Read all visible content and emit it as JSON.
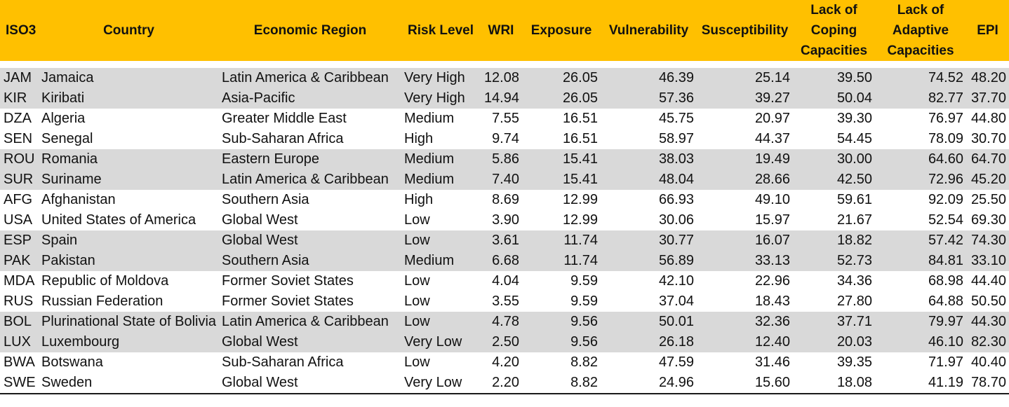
{
  "table": {
    "headers": {
      "iso3": "ISO3",
      "country": "Country",
      "region": "Economic Region",
      "risk": "Risk Level",
      "wri": "WRI",
      "exposure": "Exposure",
      "vulnerability": "Vulnerability",
      "susceptibility": "Susceptibility",
      "coping_1": "Lack of",
      "coping_2": "Coping",
      "coping_3": "Capacities",
      "adaptive_1": "Lack of",
      "adaptive_2": "Adaptive",
      "adaptive_3": "Capacities",
      "epi": "EPI"
    },
    "rows": [
      {
        "iso3": "JAM",
        "country": "Jamaica",
        "region": "Latin America & Caribbean",
        "risk": "Very High",
        "wri": "12.08",
        "exposure": "26.05",
        "vulnerability": "46.39",
        "susceptibility": "25.14",
        "coping": "39.50",
        "adaptive": "74.52",
        "epi": "48.20"
      },
      {
        "iso3": "KIR",
        "country": "Kiribati",
        "region": "Asia-Pacific",
        "risk": "Very High",
        "wri": "14.94",
        "exposure": "26.05",
        "vulnerability": "57.36",
        "susceptibility": "39.27",
        "coping": "50.04",
        "adaptive": "82.77",
        "epi": "37.70"
      },
      {
        "iso3": "DZA",
        "country": "Algeria",
        "region": "Greater Middle East",
        "risk": "Medium",
        "wri": "7.55",
        "exposure": "16.51",
        "vulnerability": "45.75",
        "susceptibility": "20.97",
        "coping": "39.30",
        "adaptive": "76.97",
        "epi": "44.80"
      },
      {
        "iso3": "SEN",
        "country": "Senegal",
        "region": "Sub-Saharan Africa",
        "risk": "High",
        "wri": "9.74",
        "exposure": "16.51",
        "vulnerability": "58.97",
        "susceptibility": "44.37",
        "coping": "54.45",
        "adaptive": "78.09",
        "epi": "30.70"
      },
      {
        "iso3": "ROU",
        "country": "Romania",
        "region": "Eastern Europe",
        "risk": "Medium",
        "wri": "5.86",
        "exposure": "15.41",
        "vulnerability": "38.03",
        "susceptibility": "19.49",
        "coping": "30.00",
        "adaptive": "64.60",
        "epi": "64.70"
      },
      {
        "iso3": "SUR",
        "country": "Suriname",
        "region": "Latin America & Caribbean",
        "risk": "Medium",
        "wri": "7.40",
        "exposure": "15.41",
        "vulnerability": "48.04",
        "susceptibility": "28.66",
        "coping": "42.50",
        "adaptive": "72.96",
        "epi": "45.20"
      },
      {
        "iso3": "AFG",
        "country": "Afghanistan",
        "region": "Southern Asia",
        "risk": "High",
        "wri": "8.69",
        "exposure": "12.99",
        "vulnerability": "66.93",
        "susceptibility": "49.10",
        "coping": "59.61",
        "adaptive": "92.09",
        "epi": "25.50"
      },
      {
        "iso3": "USA",
        "country": "United States of America",
        "region": "Global West",
        "risk": "Low",
        "wri": "3.90",
        "exposure": "12.99",
        "vulnerability": "30.06",
        "susceptibility": "15.97",
        "coping": "21.67",
        "adaptive": "52.54",
        "epi": "69.30"
      },
      {
        "iso3": "ESP",
        "country": "Spain",
        "region": "Global West",
        "risk": "Low",
        "wri": "3.61",
        "exposure": "11.74",
        "vulnerability": "30.77",
        "susceptibility": "16.07",
        "coping": "18.82",
        "adaptive": "57.42",
        "epi": "74.30"
      },
      {
        "iso3": "PAK",
        "country": "Pakistan",
        "region": "Southern Asia",
        "risk": "Medium",
        "wri": "6.68",
        "exposure": "11.74",
        "vulnerability": "56.89",
        "susceptibility": "33.13",
        "coping": "52.73",
        "adaptive": "84.81",
        "epi": "33.10"
      },
      {
        "iso3": "MDA",
        "country": "Republic of Moldova",
        "region": "Former Soviet States",
        "risk": "Low",
        "wri": "4.04",
        "exposure": "9.59",
        "vulnerability": "42.10",
        "susceptibility": "22.96",
        "coping": "34.36",
        "adaptive": "68.98",
        "epi": "44.40"
      },
      {
        "iso3": "RUS",
        "country": "Russian Federation",
        "region": "Former Soviet States",
        "risk": "Low",
        "wri": "3.55",
        "exposure": "9.59",
        "vulnerability": "37.04",
        "susceptibility": "18.43",
        "coping": "27.80",
        "adaptive": "64.88",
        "epi": "50.50"
      },
      {
        "iso3": "BOL",
        "country": "Plurinational State of Bolivia",
        "region": "Latin America & Caribbean",
        "risk": "Low",
        "wri": "4.78",
        "exposure": "9.56",
        "vulnerability": "50.01",
        "susceptibility": "32.36",
        "coping": "37.71",
        "adaptive": "79.97",
        "epi": "44.30"
      },
      {
        "iso3": "LUX",
        "country": "Luxembourg",
        "region": "Global West",
        "risk": "Very Low",
        "wri": "2.50",
        "exposure": "9.56",
        "vulnerability": "26.18",
        "susceptibility": "12.40",
        "coping": "20.03",
        "adaptive": "46.10",
        "epi": "82.30"
      },
      {
        "iso3": "BWA",
        "country": "Botswana",
        "region": "Sub-Saharan Africa",
        "risk": "Low",
        "wri": "4.20",
        "exposure": "8.82",
        "vulnerability": "47.59",
        "susceptibility": "31.46",
        "coping": "39.35",
        "adaptive": "71.97",
        "epi": "40.40"
      },
      {
        "iso3": "SWE",
        "country": "Sweden",
        "region": "Global West",
        "risk": "Very Low",
        "wri": "2.20",
        "exposure": "8.82",
        "vulnerability": "24.96",
        "susceptibility": "15.60",
        "coping": "18.08",
        "adaptive": "41.19",
        "epi": "78.70"
      }
    ]
  }
}
